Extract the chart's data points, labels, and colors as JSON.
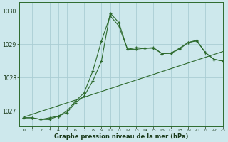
{
  "title": "Graphe pression niveau de la mer (hPa)",
  "bg_color": "#cde8ec",
  "grid_color": "#aacdd4",
  "line_color": "#2d6a2d",
  "xlim": [
    -0.5,
    23
  ],
  "ylim": [
    1026.55,
    1030.25
  ],
  "yticks": [
    1027,
    1028,
    1029,
    1030
  ],
  "xticks": [
    0,
    1,
    2,
    3,
    4,
    5,
    6,
    7,
    8,
    9,
    10,
    11,
    12,
    13,
    14,
    15,
    16,
    17,
    18,
    19,
    20,
    21,
    22,
    23
  ],
  "series1": {
    "x": [
      0,
      1,
      2,
      3,
      4,
      5,
      6,
      7,
      8,
      9,
      10,
      11,
      12,
      13,
      14,
      15,
      16,
      17,
      18,
      19,
      20,
      21,
      22,
      23
    ],
    "y": [
      1026.8,
      1026.8,
      1026.75,
      1026.75,
      1026.85,
      1027.0,
      1027.3,
      1027.55,
      1028.2,
      1029.1,
      1029.85,
      1029.55,
      1028.85,
      1028.9,
      1028.88,
      1028.88,
      1028.72,
      1028.73,
      1028.85,
      1029.05,
      1029.1,
      1028.75,
      1028.55,
      1028.5
    ]
  },
  "series2": {
    "x": [
      0,
      1,
      2,
      3,
      4,
      5,
      6,
      7,
      8,
      9,
      10,
      11,
      12,
      13,
      14,
      15,
      16,
      17,
      18,
      19,
      20,
      21,
      22,
      23
    ],
    "y": [
      1026.8,
      1026.8,
      1026.75,
      1026.8,
      1026.85,
      1026.95,
      1027.25,
      1027.45,
      1027.9,
      1028.5,
      1029.93,
      1029.65,
      1028.85,
      1028.85,
      1028.88,
      1028.9,
      1028.72,
      1028.73,
      1028.88,
      1029.05,
      1029.12,
      1028.75,
      1028.55,
      1028.5
    ]
  },
  "series3_linear": {
    "x": [
      0,
      23
    ],
    "y": [
      1026.82,
      1028.78
    ]
  }
}
